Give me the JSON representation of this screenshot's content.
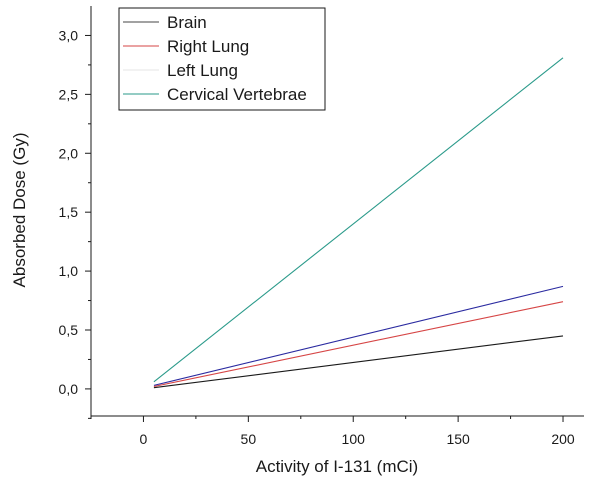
{
  "chart_data": {
    "type": "line",
    "title": "",
    "xlabel": "Activity of I-131 (mCi)",
    "ylabel": "Absorbed Dose (Gy)",
    "xlim": [
      -25,
      210
    ],
    "ylim": [
      -0.23,
      3.25
    ],
    "x_ticks": [
      0,
      50,
      100,
      150,
      200
    ],
    "x_tick_labels": [
      "0",
      "50",
      "100",
      "150",
      "200"
    ],
    "y_ticks": [
      0.0,
      0.5,
      1.0,
      1.5,
      2.0,
      2.5,
      3.0
    ],
    "y_tick_labels": [
      "0,0",
      "0,5",
      "1,0",
      "1,5",
      "2,0",
      "2,5",
      "3,0"
    ],
    "grid": false,
    "legend_position": "top-left",
    "series": [
      {
        "name": "Brain",
        "color": "#1a1a1a",
        "x": [
          5,
          200
        ],
        "y": [
          0.01,
          0.45
        ]
      },
      {
        "name": "Right Lung",
        "color": "#d64545",
        "x": [
          5,
          200
        ],
        "y": [
          0.02,
          0.74
        ]
      },
      {
        "name": "Left Lung",
        "color": "#2a2aa0",
        "x": [
          5,
          200
        ],
        "y": [
          0.03,
          0.87
        ]
      },
      {
        "name": "Cervical Vertebrae",
        "color": "#2a9a8a",
        "x": [
          5,
          200
        ],
        "y": [
          0.06,
          2.81
        ]
      }
    ],
    "legend_line_colors": [
      "#444444",
      "#d64545",
      "#e6e6e6",
      "#2a9a8a"
    ]
  }
}
